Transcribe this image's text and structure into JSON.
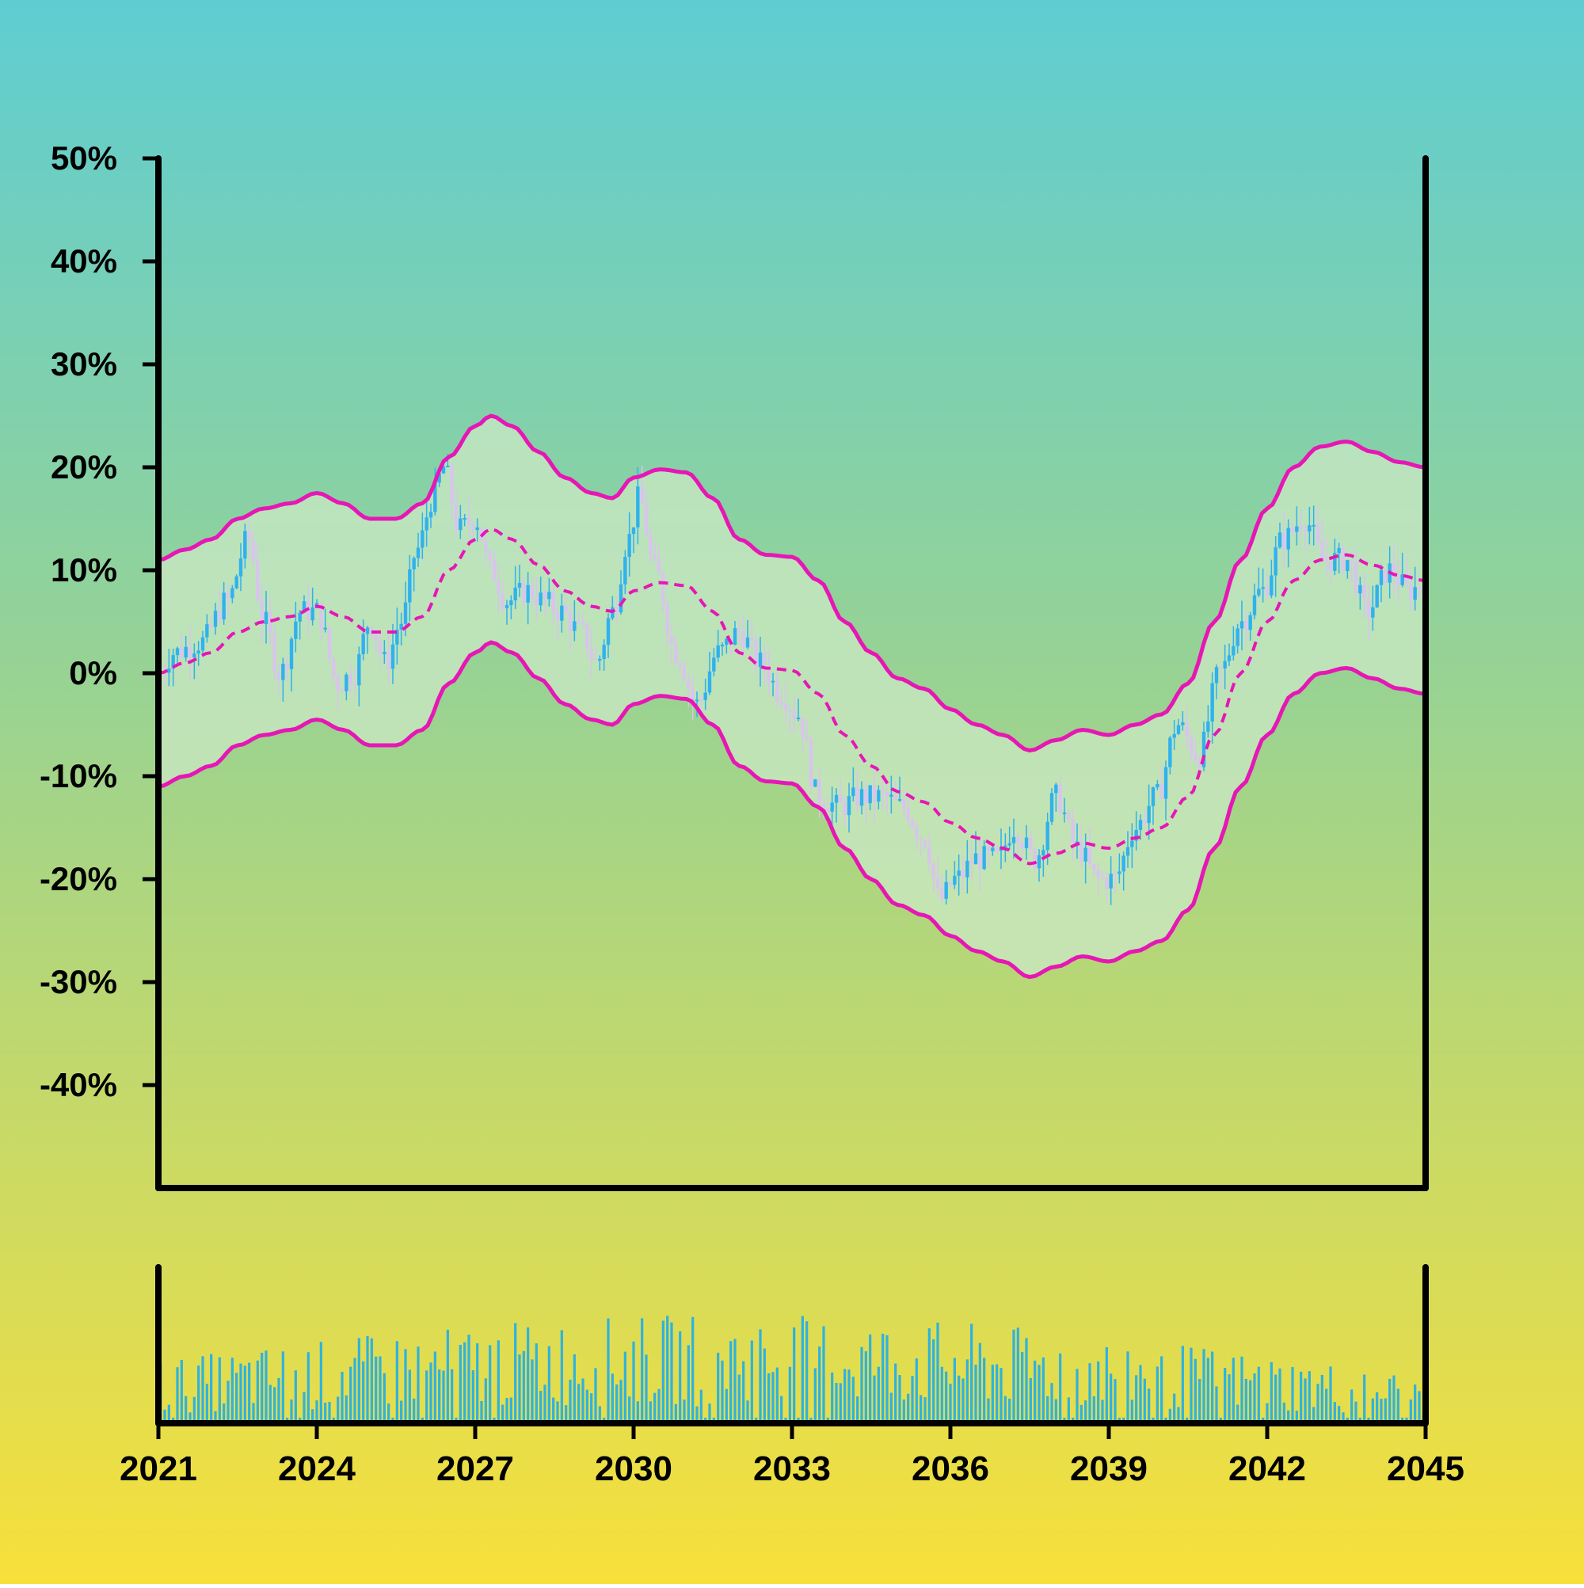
{
  "chart_data": {
    "type": "candlestick",
    "x_unit": "year",
    "y_unit": "%",
    "xlim": [
      2021,
      2045
    ],
    "ylim": [
      -50,
      50
    ],
    "y_ticks": [
      "50%",
      "40%",
      "30%",
      "20%",
      "10%",
      "0%",
      "-10%",
      "-20%",
      "-30%",
      "-40%"
    ],
    "y_tick_values": [
      50,
      40,
      30,
      20,
      10,
      0,
      -10,
      -20,
      -30,
      -40
    ],
    "x_ticks": [
      "2021",
      "2024",
      "2027",
      "2030",
      "2033",
      "2036",
      "2039",
      "2042",
      "2045"
    ],
    "x_tick_values": [
      2021,
      2024,
      2027,
      2030,
      2033,
      2036,
      2039,
      2042,
      2045
    ],
    "price_anchor_points": [
      [
        2021.0,
        0
      ],
      [
        2021.3,
        2
      ],
      [
        2021.8,
        3
      ],
      [
        2022.3,
        7
      ],
      [
        2022.7,
        13
      ],
      [
        2023.0,
        5
      ],
      [
        2023.3,
        0
      ],
      [
        2023.7,
        6
      ],
      [
        2024.0,
        6
      ],
      [
        2024.4,
        -1
      ],
      [
        2024.7,
        0
      ],
      [
        2025.0,
        5
      ],
      [
        2025.3,
        1
      ],
      [
        2025.6,
        5
      ],
      [
        2025.9,
        12
      ],
      [
        2026.2,
        17
      ],
      [
        2026.4,
        20
      ],
      [
        2026.7,
        14
      ],
      [
        2027.0,
        15
      ],
      [
        2027.3,
        10
      ],
      [
        2027.6,
        7
      ],
      [
        2028.0,
        8
      ],
      [
        2028.3,
        7
      ],
      [
        2028.6,
        6
      ],
      [
        2029.0,
        4
      ],
      [
        2029.3,
        1
      ],
      [
        2029.6,
        6
      ],
      [
        2029.9,
        13
      ],
      [
        2030.1,
        17
      ],
      [
        2030.4,
        10
      ],
      [
        2030.8,
        2
      ],
      [
        2031.2,
        -3
      ],
      [
        2031.6,
        2
      ],
      [
        2032.0,
        4
      ],
      [
        2032.4,
        1
      ],
      [
        2032.8,
        -2
      ],
      [
        2033.1,
        -4
      ],
      [
        2033.5,
        -12
      ],
      [
        2033.9,
        -13
      ],
      [
        2034.3,
        -12
      ],
      [
        2034.7,
        -12
      ],
      [
        2035.1,
        -13
      ],
      [
        2035.5,
        -16
      ],
      [
        2035.8,
        -22
      ],
      [
        2036.1,
        -20
      ],
      [
        2036.5,
        -18
      ],
      [
        2036.9,
        -18
      ],
      [
        2037.2,
        -15
      ],
      [
        2037.6,
        -18
      ],
      [
        2038.0,
        -12
      ],
      [
        2038.4,
        -17
      ],
      [
        2038.8,
        -20
      ],
      [
        2039.1,
        -20
      ],
      [
        2039.5,
        -15
      ],
      [
        2039.9,
        -12
      ],
      [
        2040.3,
        -5
      ],
      [
        2040.7,
        -8
      ],
      [
        2041.1,
        0
      ],
      [
        2041.5,
        5
      ],
      [
        2041.9,
        8
      ],
      [
        2042.3,
        13
      ],
      [
        2042.7,
        15
      ],
      [
        2043.1,
        11
      ],
      [
        2043.5,
        11
      ],
      [
        2043.9,
        6
      ],
      [
        2044.3,
        10
      ],
      [
        2044.7,
        8
      ],
      [
        2045.0,
        9
      ]
    ],
    "moving_average_points": [
      [
        2021.0,
        0
      ],
      [
        2021.5,
        1
      ],
      [
        2022.0,
        2
      ],
      [
        2022.5,
        4
      ],
      [
        2023.0,
        5
      ],
      [
        2023.5,
        5.5
      ],
      [
        2024.0,
        6.5
      ],
      [
        2024.5,
        5.5
      ],
      [
        2025.0,
        4
      ],
      [
        2025.5,
        4
      ],
      [
        2026.0,
        5.5
      ],
      [
        2026.5,
        10
      ],
      [
        2027.0,
        13
      ],
      [
        2027.3,
        14
      ],
      [
        2027.7,
        13
      ],
      [
        2028.2,
        10.5
      ],
      [
        2028.7,
        8
      ],
      [
        2029.2,
        6.5
      ],
      [
        2029.6,
        6
      ],
      [
        2030.0,
        8
      ],
      [
        2030.5,
        8.8
      ],
      [
        2031.0,
        8.5
      ],
      [
        2031.5,
        6
      ],
      [
        2032.0,
        2
      ],
      [
        2032.5,
        0.5
      ],
      [
        2033.0,
        0.3
      ],
      [
        2033.5,
        -2
      ],
      [
        2034.0,
        -6
      ],
      [
        2034.5,
        -9
      ],
      [
        2035.0,
        -11.5
      ],
      [
        2035.5,
        -12.5
      ],
      [
        2036.0,
        -14.5
      ],
      [
        2036.5,
        -16
      ],
      [
        2037.0,
        -17
      ],
      [
        2037.5,
        -18.5
      ],
      [
        2038.0,
        -17.5
      ],
      [
        2038.5,
        -16.5
      ],
      [
        2039.0,
        -17
      ],
      [
        2039.5,
        -16
      ],
      [
        2040.0,
        -15
      ],
      [
        2040.5,
        -12
      ],
      [
        2041.0,
        -6
      ],
      [
        2041.5,
        0
      ],
      [
        2042.0,
        5
      ],
      [
        2042.5,
        9
      ],
      [
        2043.0,
        11
      ],
      [
        2043.5,
        11.5
      ],
      [
        2044.0,
        10.5
      ],
      [
        2044.5,
        9.5
      ],
      [
        2045.0,
        9
      ]
    ],
    "band_half_width": 11,
    "colors": {
      "background_top": "#5ECDD2",
      "background_mid": "#9BD390",
      "background_bottom": "#F8E03A",
      "band_fill": "#CBE8C4",
      "band_line": "#E617B5",
      "candle_up": "#2FB2EE",
      "candle_down": "#D9C4EE",
      "volume_bar": "#2FB2DD",
      "axis": "#000000"
    }
  }
}
